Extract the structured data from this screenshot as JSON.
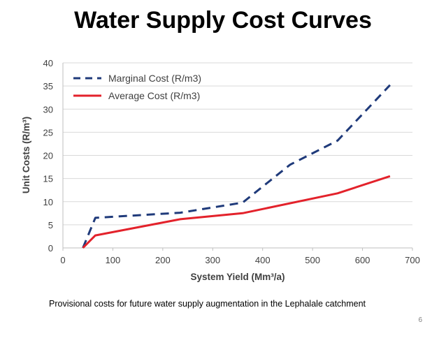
{
  "slide": {
    "title": "Water Supply Cost Curves",
    "caption": "Provisional costs for future water supply augmentation in the Lephalale catchment",
    "page_number": "6"
  },
  "chart_data": {
    "type": "line",
    "xlabel": "System Yield (Mm³/a)",
    "ylabel": "Unit Costs (R/m³)",
    "xlim": [
      0,
      700
    ],
    "ylim": [
      0,
      40
    ],
    "x_ticks": [
      "0",
      "100",
      "200",
      "300",
      "400",
      "500",
      "600",
      "700"
    ],
    "y_ticks": [
      "0",
      "5",
      "10",
      "15",
      "20",
      "25",
      "30",
      "35",
      "40"
    ],
    "grid": true,
    "legend_position": "top-left",
    "series": [
      {
        "name": "Marginal Cost (R/m3)",
        "style": "dashed",
        "color": "#1f3a7a",
        "points": [
          [
            40,
            0
          ],
          [
            65,
            6.5
          ],
          [
            235,
            7.6
          ],
          [
            360,
            9.8
          ],
          [
            455,
            18
          ],
          [
            550,
            23.2
          ],
          [
            655,
            35.2
          ]
        ]
      },
      {
        "name": "Average Cost (R/m3)",
        "style": "solid",
        "color": "#e3222b",
        "points": [
          [
            40,
            0
          ],
          [
            65,
            2.7
          ],
          [
            235,
            6.2
          ],
          [
            360,
            7.5
          ],
          [
            550,
            11.8
          ],
          [
            655,
            15.5
          ]
        ]
      }
    ]
  }
}
